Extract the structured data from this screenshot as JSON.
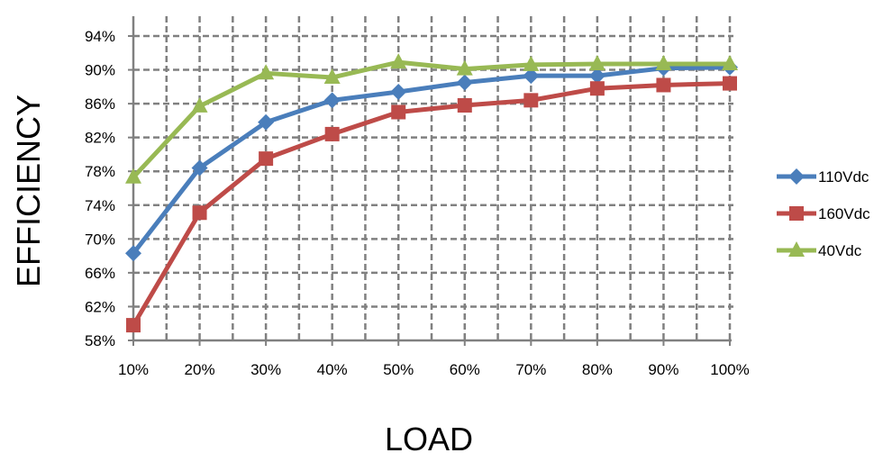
{
  "chart_data": {
    "type": "line",
    "title": "",
    "xlabel": "LOAD",
    "ylabel": "EFFICIENCY",
    "categories": [
      "10%",
      "20%",
      "30%",
      "40%",
      "50%",
      "60%",
      "70%",
      "80%",
      "90%",
      "100%"
    ],
    "yticks": [
      "58%",
      "62%",
      "66%",
      "70%",
      "74%",
      "78%",
      "82%",
      "86%",
      "90%",
      "94%"
    ],
    "ytick_values": [
      58,
      62,
      66,
      70,
      74,
      78,
      82,
      86,
      90,
      94
    ],
    "ylim": [
      58,
      96
    ],
    "grid": true,
    "legend_position": "right",
    "series": [
      {
        "name": "110Vdc",
        "color": "#4a7ebb",
        "marker": "diamond",
        "values": [
          68.3,
          78.4,
          83.8,
          86.4,
          87.4,
          88.5,
          89.3,
          89.3,
          90.2,
          90.3
        ]
      },
      {
        "name": "160Vdc",
        "color": "#be4b48",
        "marker": "square",
        "values": [
          59.8,
          73.1,
          79.5,
          82.4,
          85.0,
          85.8,
          86.4,
          87.8,
          88.2,
          88.4
        ]
      },
      {
        "name": "40Vdc",
        "color": "#98b954",
        "marker": "triangle",
        "values": [
          77.3,
          85.7,
          89.6,
          89.1,
          90.9,
          90.1,
          90.6,
          90.7,
          90.7,
          90.7
        ]
      }
    ]
  }
}
